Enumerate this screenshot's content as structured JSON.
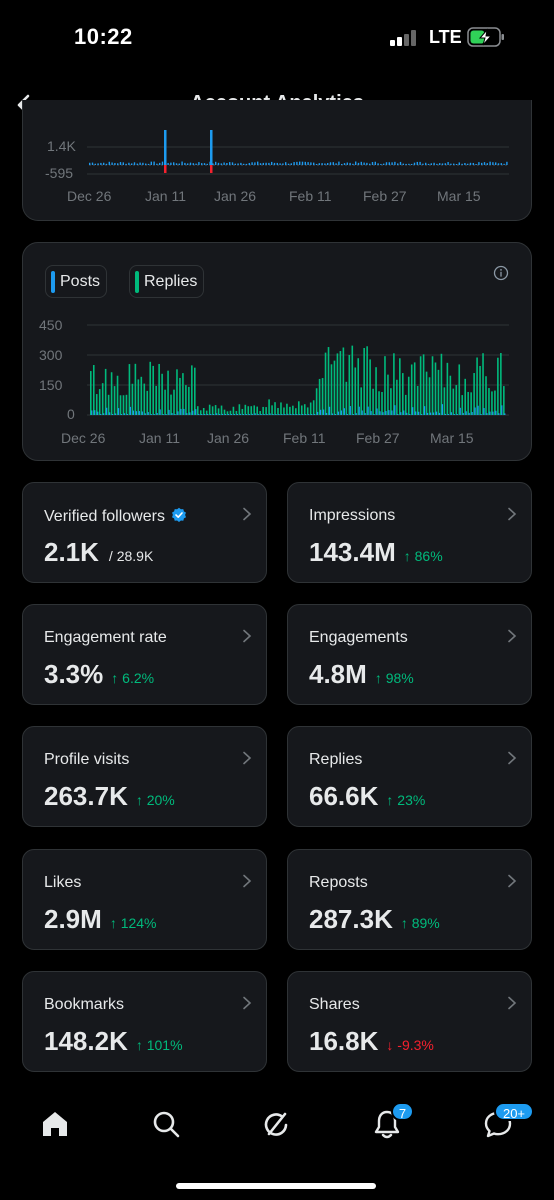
{
  "status_bar": {
    "time": "10:22",
    "network": "LTE"
  },
  "header": {
    "title": "Account Analytics"
  },
  "top_chart": {
    "y_ticks": [
      "1.4K",
      "-595"
    ],
    "x_ticks": [
      "Dec 26",
      "Jan 11",
      "Jan 26",
      "Feb 11",
      "Feb 27",
      "Mar 15"
    ]
  },
  "main_chart": {
    "legend": [
      {
        "name": "Posts",
        "color": "#1d9bf0"
      },
      {
        "name": "Replies",
        "color": "#00ba7c"
      }
    ],
    "y_ticks": [
      "450",
      "300",
      "150",
      "0"
    ],
    "x_ticks": [
      "Dec 26",
      "Jan 11",
      "Jan 26",
      "Feb 11",
      "Feb 27",
      "Mar 15"
    ]
  },
  "metrics": [
    {
      "label": "Verified followers",
      "value": "2.1K",
      "sub": "/ 28.9K",
      "change": "",
      "direction": "none",
      "verified": true
    },
    {
      "label": "Impressions",
      "value": "143.4M",
      "change": "↑ 86%",
      "direction": "up"
    },
    {
      "label": "Engagement rate",
      "value": "3.3%",
      "change": "↑ 6.2%",
      "direction": "up"
    },
    {
      "label": "Engagements",
      "value": "4.8M",
      "change": "↑ 98%",
      "direction": "up"
    },
    {
      "label": "Profile visits",
      "value": "263.7K",
      "change": "↑ 20%",
      "direction": "up"
    },
    {
      "label": "Replies",
      "value": "66.6K",
      "change": "↑ 23%",
      "direction": "up"
    },
    {
      "label": "Likes",
      "value": "2.9M",
      "change": "↑ 124%",
      "direction": "up"
    },
    {
      "label": "Reposts",
      "value": "287.3K",
      "change": "↑ 89%",
      "direction": "up"
    },
    {
      "label": "Bookmarks",
      "value": "148.2K",
      "change": "↑ 101%",
      "direction": "up"
    },
    {
      "label": "Shares",
      "value": "16.8K",
      "change": "↓ -9.3%",
      "direction": "down"
    }
  ],
  "tabbar": {
    "items": [
      "home-icon",
      "search-icon",
      "grok-icon",
      "notifications-icon",
      "messages-icon"
    ],
    "notifications_badge": "7",
    "messages_badge": "20+"
  },
  "colors": {
    "accent": "#1d9bf0",
    "positive": "#00ba7c",
    "negative": "#f4212e",
    "card": "#16181c",
    "border": "#2f3336"
  }
}
